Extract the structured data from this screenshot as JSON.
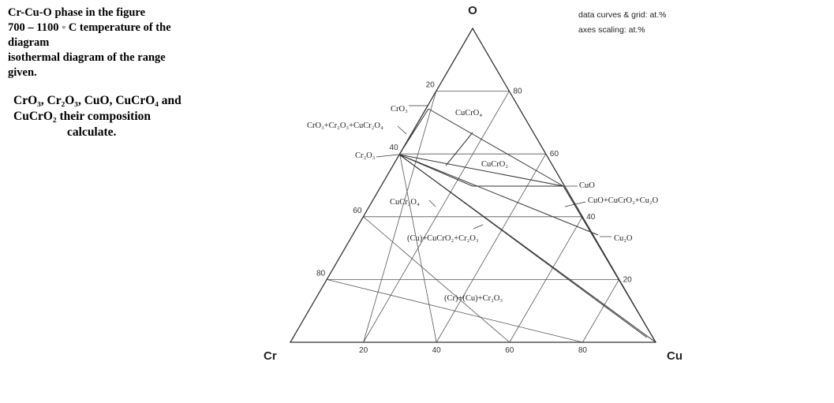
{
  "question": {
    "paragraph_1": [
      "Cr-Cu-O phase in the figure",
      "700 – 1100 ◦ C temperature of the",
      "diagram",
      "isothermal diagram of the range",
      "given."
    ],
    "paragraph_2": [
      "CrO₃, Cr₂O₃, CuO, CuCrO₄ and",
      "CuCrO₂ their composition",
      "calculate."
    ]
  },
  "diagram": {
    "vertices": {
      "top": "O",
      "left": "Cr",
      "right": "Cu"
    },
    "notes": [
      "data curves & grid: at.%",
      "axes scaling: at.%"
    ],
    "ticks": {
      "left": [
        20,
        40,
        60,
        80
      ],
      "bottom": [
        20,
        40,
        60,
        80
      ],
      "right": [
        80,
        60,
        40,
        20
      ]
    },
    "labels": [
      "CrO₃",
      "CuCrO₄",
      "CrO₃+Cr₂O₃+CuCr₂O₄",
      "Cr₂O₃",
      "CuCrO₂",
      "CuO",
      "CuO+CuCrO₂+Cu₂O",
      "CuCr₂O₄",
      "(Cu)+CuCrO₂+Cr₂O₃",
      "Cu₂O",
      "(Cr)+(Cu)+Cr₂O₃"
    ]
  }
}
